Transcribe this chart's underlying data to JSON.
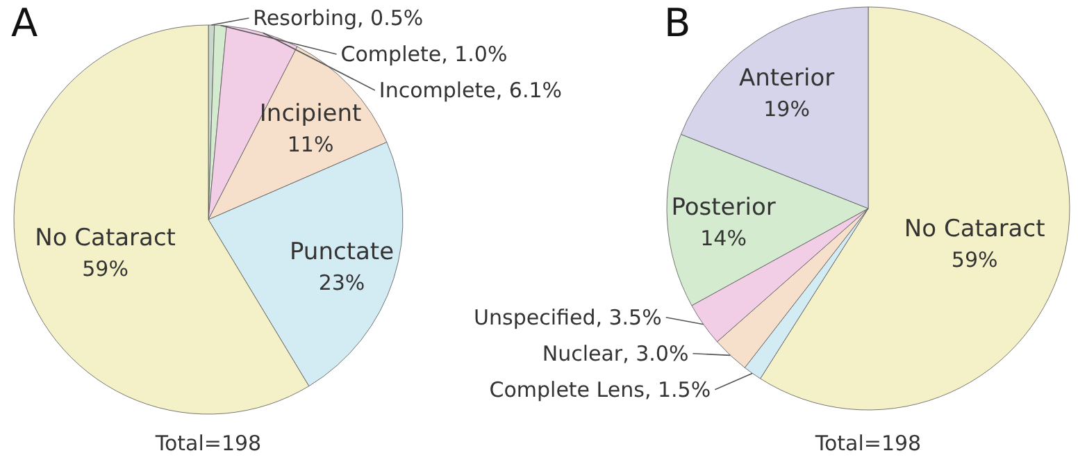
{
  "chart_data": [
    {
      "type": "pie",
      "title": "A",
      "categories": [
        "Resorbing",
        "Complete",
        "Incomplete",
        "Incipient",
        "Punctate",
        "No Cataract"
      ],
      "values": [
        0.5,
        1.0,
        6.1,
        11,
        23,
        59
      ],
      "value_labels": [
        "0.5%",
        "1.0%",
        "6.1%",
        "11%",
        "23%",
        "59%"
      ],
      "colors": [
        "#c9d8c9",
        "#d4ebcf",
        "#f2cde6",
        "#f6e0cc",
        "#d3ebf3",
        "#f4f1c9"
      ],
      "annotations": [
        "Total=198"
      ]
    },
    {
      "type": "pie",
      "title": "B",
      "categories": [
        "No Cataract",
        "Complete Lens",
        "Nuclear",
        "Unspecified",
        "Posterior",
        "Anterior"
      ],
      "values": [
        59,
        1.5,
        3.0,
        3.5,
        14,
        19
      ],
      "value_labels": [
        "59%",
        "1.5%",
        "3.0%",
        "3.5%",
        "14%",
        "19%"
      ],
      "colors": [
        "#f4f1c9",
        "#d3ebf3",
        "#f6e0cc",
        "#f2cde6",
        "#d4ebcf",
        "#d5d4eb"
      ],
      "annotations": [
        "Total=198"
      ]
    }
  ]
}
